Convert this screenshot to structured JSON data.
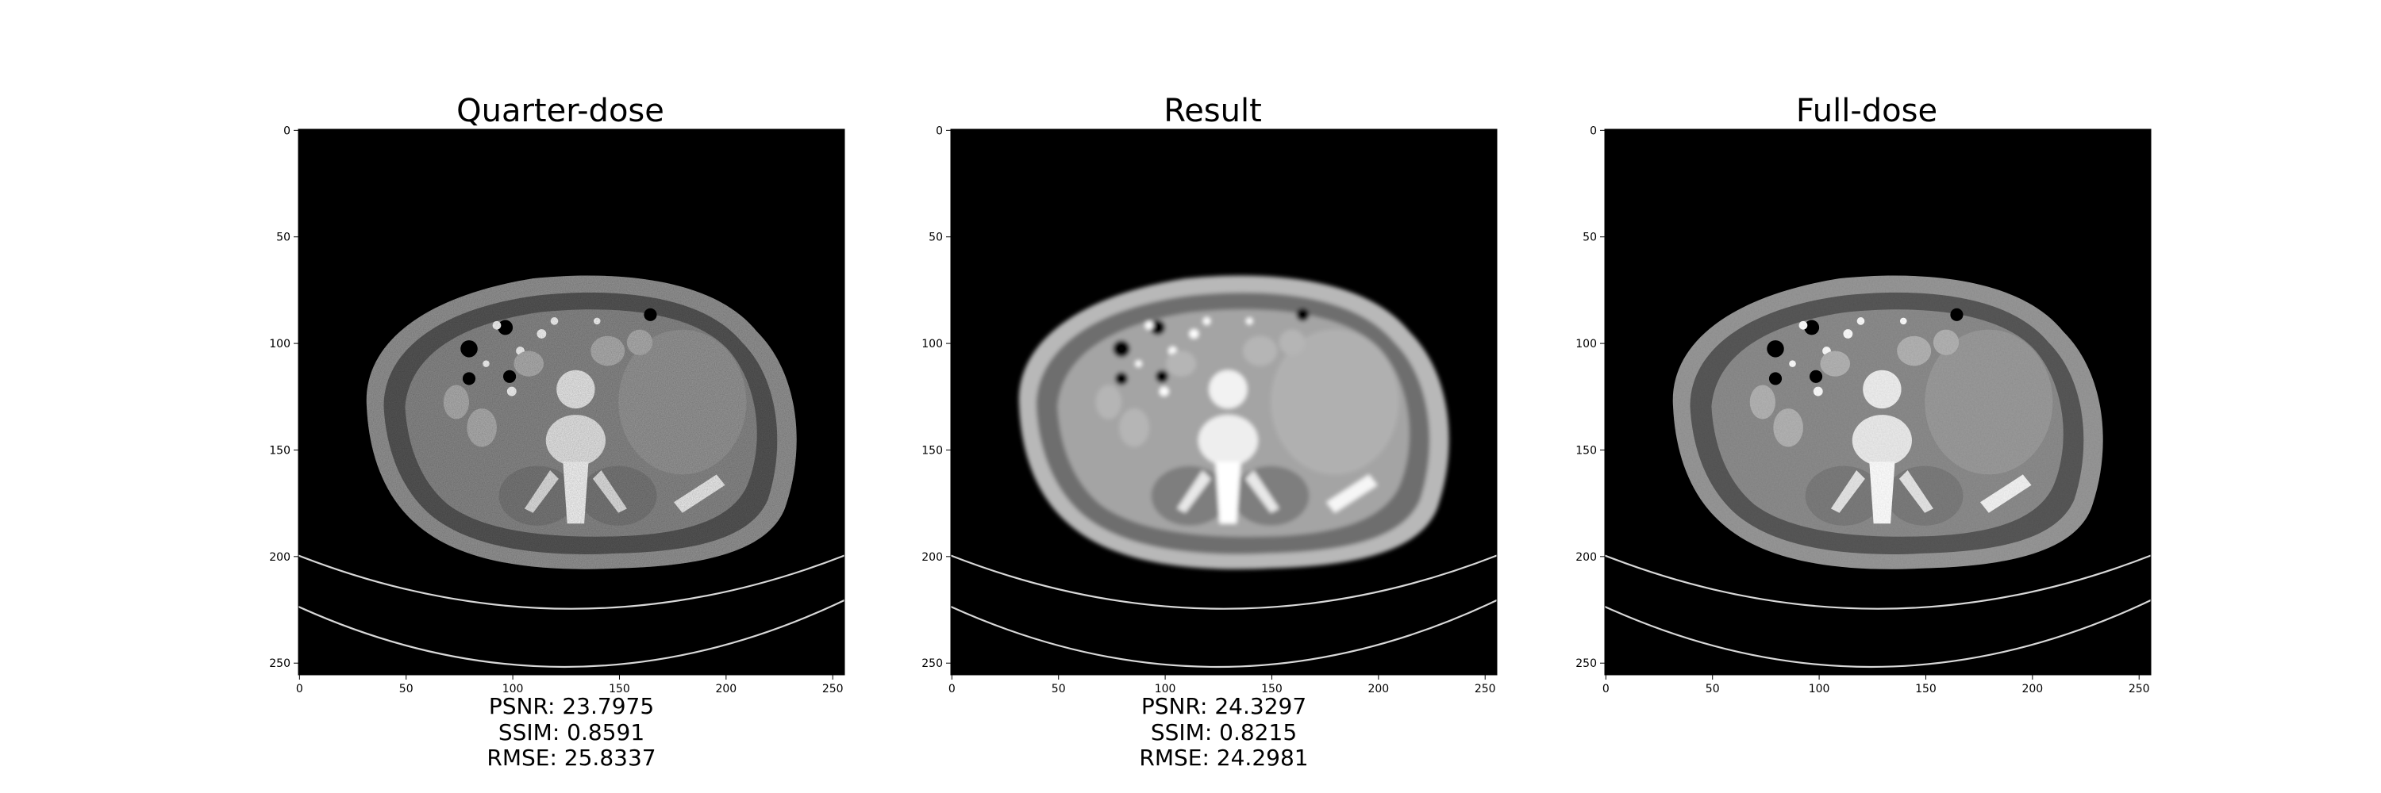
{
  "axis_ticks": [
    "0",
    "50",
    "100",
    "150",
    "200",
    "250"
  ],
  "panels": [
    {
      "key": "quarter",
      "title": "Quarter-dose",
      "metrics": [
        "PSNR: 23.7975",
        "SSIM: 0.8591",
        "RMSE: 25.8337"
      ]
    },
    {
      "key": "result",
      "title": "Result",
      "metrics": [
        "PSNR: 24.3297",
        "SSIM: 0.8215",
        "RMSE: 24.2981"
      ]
    },
    {
      "key": "full",
      "title": "Full-dose",
      "metrics": [
        "",
        "",
        ""
      ]
    }
  ]
}
